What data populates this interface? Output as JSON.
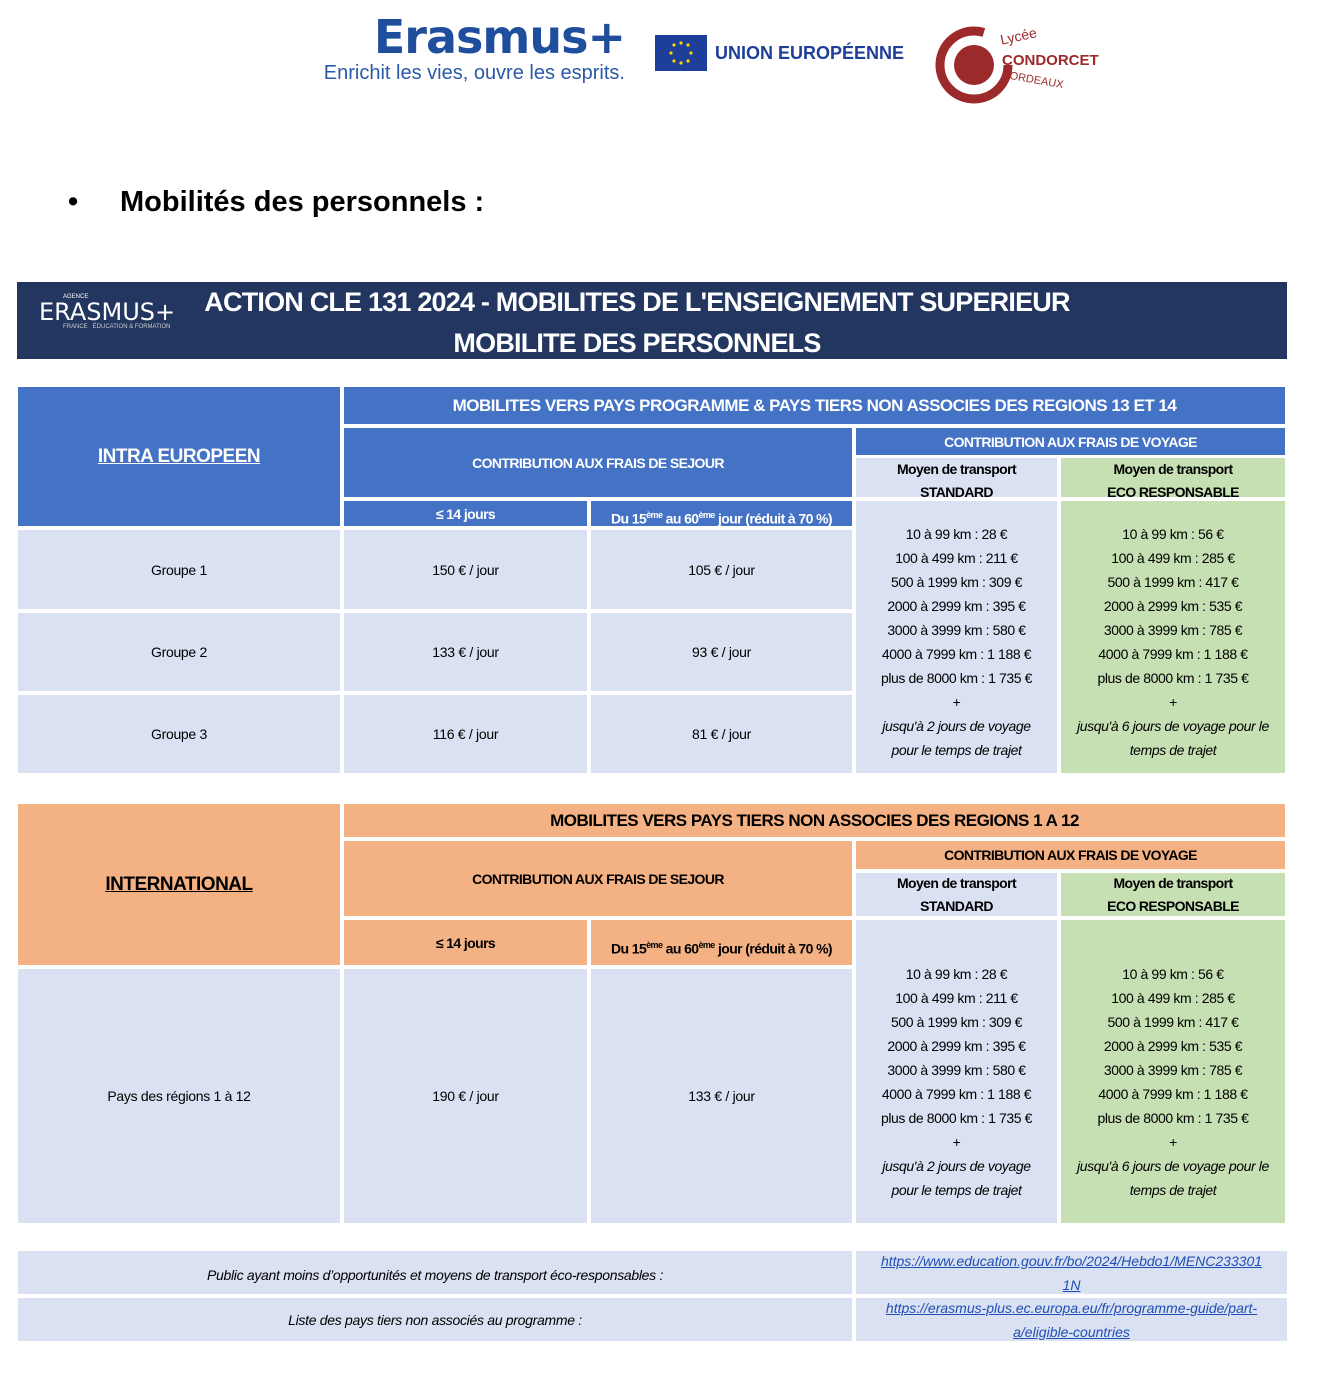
{
  "header": {
    "erasmus_logo": "Erasmus+",
    "erasmus_tagline": "Enrichit les vies, ouvre les esprits.",
    "eu_label": "UNION EUROPÉENNE",
    "school_logo": {
      "line1": "Lycée",
      "line2": "CONDORCET",
      "line3": "BORDEAUX"
    }
  },
  "section_title": "Mobilités des personnels :",
  "banner": {
    "logo": {
      "agence": "AGENCE",
      "name": "ERASMUS+",
      "sub": "FRANCE   ÉDUCATION & FORMATION"
    },
    "title_line1": "ACTION CLE 131 2024 - MOBILITES DE L'ENSEIGNEMENT SUPERIEUR",
    "title_line2": "MOBILITE DES PERSONNELS"
  },
  "colors": {
    "banner": "#22365f",
    "blue": "#4472c4",
    "light_blue": "#d9e1f2",
    "green": "#c6e0b4",
    "orange": "#f4b183",
    "link": "#1f4fb4"
  },
  "table_intra": {
    "label": "INTRA EUROPEEN",
    "header": "MOBILITES VERS PAYS PROGRAMME &  PAYS TIERS NON ASSOCIES DES REGIONS 13 ET 14",
    "sejour_label": "CONTRIBUTION AUX FRAIS DE SEJOUR",
    "voyage_label": "CONTRIBUTION AUX FRAIS DE VOYAGE",
    "col_le14": "≤ 14 jours",
    "col_15_60": {
      "a": "Du 15",
      "sup1": "ème",
      "b": " au 60",
      "sup2": "ème",
      "c": " jour (réduit à 70 %)"
    },
    "standard_header": {
      "l1": "Moyen de transport",
      "l2": "STANDARD"
    },
    "eco_header": {
      "l1": "Moyen de transport",
      "l2": "ECO RESPONSABLE"
    },
    "rows": [
      {
        "group": "Groupe 1",
        "le14": "150 € / jour",
        "d15_60": "105 € / jour"
      },
      {
        "group": "Groupe 2",
        "le14": "133 € / jour",
        "d15_60": "93 € / jour"
      },
      {
        "group": "Groupe 3",
        "le14": "116 € / jour",
        "d15_60": "81 € / jour"
      }
    ],
    "standard_rates": [
      "10 à 99 km : 28 €",
      "100 à 499 km : 211 €",
      "500 à 1999 km : 309 €",
      "2000 à 2999 km : 395 €",
      "3000 à 3999 km : 580 €",
      "4000 à 7999 km : 1 188 €",
      "plus de 8000 km : 1 735 €",
      "+"
    ],
    "standard_note": [
      "jusqu'à 2 jours de voyage",
      "pour le temps de trajet"
    ],
    "eco_rates": [
      "10 à 99 km :  56 €",
      "100 à 499 km : 285  €",
      "500 à 1999 km : 417 €",
      "2000 à 2999 km : 535 €",
      "3000 à 3999 km : 785 €",
      "4000 à 7999 km : 1 188 €",
      "plus de 8000 km : 1 735 €",
      "+"
    ],
    "eco_note": [
      "jusqu'à 6 jours de voyage pour le",
      "temps de trajet"
    ]
  },
  "table_intl": {
    "label": "INTERNATIONAL",
    "header": "MOBILITES VERS PAYS TIERS NON ASSOCIES DES REGIONS 1 A 12",
    "sejour_label": "CONTRIBUTION AUX FRAIS DE SEJOUR",
    "voyage_label": "CONTRIBUTION AUX FRAIS DE VOYAGE",
    "col_le14": "≤ 14 jours",
    "col_15_60": {
      "a": "Du 15",
      "sup1": "ème",
      "b": " au 60",
      "sup2": "ème",
      "c": " jour (réduit à 70 %)"
    },
    "standard_header": {
      "l1": "Moyen de transport",
      "l2": "STANDARD"
    },
    "eco_header": {
      "l1": "Moyen de transport",
      "l2": "ECO RESPONSABLE"
    },
    "row": {
      "group": "Pays des régions 1 à 12",
      "le14": "190 € / jour",
      "d15_60": "133 € / jour"
    },
    "standard_rates": [
      "10 à 99 km : 28 €",
      "100 à 499 km : 211 €",
      "500 à 1999 km : 309 €",
      "2000 à 2999 km : 395 €",
      "3000 à 3999 km : 580 €",
      "4000 à 7999 km : 1 188 €",
      "plus de 8000 km : 1 735 €",
      "+"
    ],
    "standard_note": [
      "jusqu'à 2 jours de voyage",
      "pour le temps de trajet"
    ],
    "eco_rates": [
      "10 à 99 km :  56 €",
      "100 à 499 km : 285  €",
      "500 à 1999 km : 417 €",
      "2000 à 2999 km : 535 €",
      "3000 à 3999 km : 785 €",
      "4000 à 7999 km : 1 188 €",
      "plus de 8000 km : 1 735 €",
      "+"
    ],
    "eco_note": [
      "jusqu'à 6 jours de voyage pour le",
      "temps de trajet"
    ]
  },
  "footer_links": [
    {
      "label": "Public ayant moins d’opportunités et moyens de transport éco-responsables :",
      "url_l1": "https://www.education.gouv.fr/bo/2024/Hebdo1/MENC233301",
      "url_l2": "1N"
    },
    {
      "label": "Liste des pays tiers non associés au programme :",
      "url_l1": "https://erasmus-plus.ec.europa.eu/fr/programme-guide/part-",
      "url_l2": "a/eligible-countries"
    }
  ]
}
